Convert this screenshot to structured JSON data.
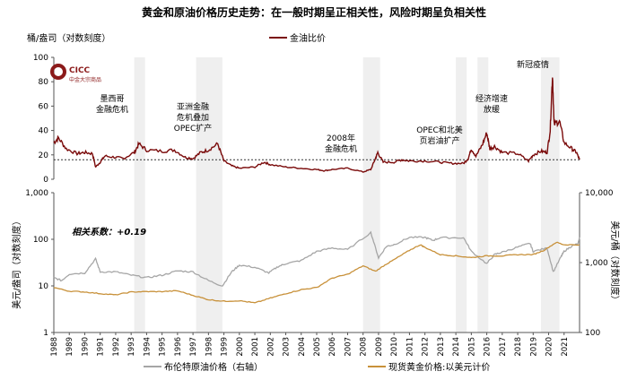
{
  "chart_data": [
    {
      "type": "line",
      "title": "黄金和原油价格历史走势：在一般时期呈正相关性，风险时期呈负相关性",
      "ylabel": "桶/盎司（对数刻度）",
      "ylim": [
        0,
        100
      ],
      "yticks": [
        "0",
        "20",
        "40",
        "60",
        "80",
        "100"
      ],
      "reference_line": 16,
      "legend": "top-center",
      "series": [
        {
          "name": "金油比价",
          "color": "#7a0a0a",
          "x": [
            1988.0,
            1988.3,
            1988.8,
            1989.5,
            1990.0,
            1990.5,
            1990.7,
            1991.0,
            1991.3,
            1992.0,
            1992.5,
            1993.2,
            1993.5,
            1994.0,
            1995.0,
            1995.8,
            1996.5,
            1997.0,
            1997.5,
            1998.0,
            1998.6,
            1999.0,
            1999.5,
            2000.0,
            2001.0,
            2001.6,
            2002.0,
            2003.0,
            2004.0,
            2005.0,
            2005.5,
            2006.0,
            2007.0,
            2008.0,
            2008.5,
            2008.8,
            2008.95,
            2009.3,
            2010.0,
            2010.5,
            2011.0,
            2012.0,
            2013.0,
            2013.8,
            2014.5,
            2014.8,
            2015.0,
            2015.3,
            2015.7,
            2016.0,
            2016.2,
            2016.5,
            2017.0,
            2018.0,
            2018.7,
            2019.0,
            2019.5,
            2019.9,
            2020.1,
            2020.25,
            2020.35,
            2020.7,
            2021.0,
            2021.5,
            2021.8,
            2022.0
          ],
          "values": [
            30,
            34,
            25,
            21,
            22,
            21,
            10,
            14,
            19,
            18,
            17,
            22,
            29,
            24,
            23,
            24,
            18,
            17,
            22,
            24,
            29,
            15,
            11,
            9,
            10,
            14,
            12,
            10,
            9,
            8,
            7,
            8,
            9,
            6,
            8,
            17,
            22,
            14,
            14,
            16,
            15,
            15,
            14,
            13,
            13,
            17,
            25,
            19,
            28,
            38,
            25,
            27,
            22,
            21,
            15,
            20,
            23,
            22,
            40,
            86,
            45,
            48,
            30,
            25,
            22,
            16
          ]
        }
      ],
      "shaded_periods": [
        [
          1993.2,
          1993.9
        ],
        [
          1997.2,
          1998.9
        ],
        [
          2008.0,
          2009.1
        ],
        [
          2014.0,
          2014.7
        ],
        [
          2015.4,
          2016.1
        ],
        [
          2019.5,
          2020.7
        ]
      ],
      "annotations": [
        "墨西哥\n金融危机",
        "亚洲金融\n危机叠加\nOPEC扩产",
        "2008年\n金融危机",
        "OPEC和北美\n页岩油扩产",
        "经济增速\n放缓",
        "新冠疫情"
      ],
      "logo": "CICC 中金大宗商品"
    },
    {
      "type": "line",
      "ylabel": "美元/盎司（对数刻度）",
      "y2label": "美元/桶（对数刻度）",
      "yscale": "log",
      "ylim": [
        1,
        1000
      ],
      "y2lim": [
        100,
        10000
      ],
      "yticks": [
        "1",
        "10",
        "100",
        "1,000"
      ],
      "y2ticks": [
        "100",
        "1,000",
        "10,000"
      ],
      "xticks": [
        "1988",
        "1989",
        "1990",
        "1991",
        "1992",
        "1993",
        "1994",
        "1995",
        "1996",
        "1997",
        "1998",
        "1999",
        "2000",
        "2001",
        "2002",
        "2003",
        "2004",
        "2005",
        "2006",
        "2007",
        "2008",
        "2009",
        "2010",
        "2011",
        "2012",
        "2013",
        "2014",
        "2015",
        "2016",
        "2017",
        "2018",
        "2019",
        "2020",
        "2021"
      ],
      "annotation": "相关系数：+0.19",
      "legend": "bottom",
      "series": [
        {
          "name": "布伦特原油价格（右轴）",
          "color": "#a6a6a6",
          "axis": "left",
          "x": [
            1988,
            1988.5,
            1989,
            1990,
            1990.7,
            1991,
            1992,
            1993,
            1994,
            1995,
            1996,
            1997,
            1998,
            1998.9,
            1999.5,
            2000,
            2001,
            2001.9,
            2002.5,
            2003,
            2004,
            2005,
            2006,
            2007,
            2008.5,
            2009,
            2009.5,
            2010,
            2011,
            2012,
            2012.5,
            2013,
            2014.5,
            2015,
            2016,
            2016.5,
            2017,
            2018,
            2018.8,
            2019,
            2019.9,
            2020.3,
            2020.8,
            2021,
            2021.5,
            2021.9,
            2022
          ],
          "values": [
            15,
            13,
            18,
            19,
            38,
            20,
            20,
            17,
            15,
            17,
            21,
            20,
            13,
            10,
            20,
            28,
            25,
            19,
            26,
            30,
            35,
            55,
            65,
            60,
            140,
            40,
            70,
            77,
            110,
            110,
            95,
            108,
            108,
            55,
            30,
            47,
            53,
            68,
            82,
            55,
            65,
            20,
            42,
            55,
            72,
            80,
            110
          ]
        },
        {
          "name": "现货黄金价格:以美元计价",
          "color": "#c8913a",
          "axis": "right",
          "x": [
            1988,
            1989,
            1990,
            1991,
            1992,
            1993,
            1994,
            1995,
            1996,
            1997,
            1998,
            1999,
            2000,
            2001,
            2002,
            2003,
            2004,
            2005,
            2006,
            2007,
            2008,
            2008.8,
            2009.5,
            2010,
            2011,
            2011.7,
            2012,
            2013,
            2014,
            2015,
            2016,
            2017,
            2018,
            2019,
            2019.7,
            2020.5,
            2021,
            2022
          ],
          "values": [
            440,
            390,
            380,
            360,
            345,
            380,
            385,
            385,
            395,
            340,
            295,
            280,
            285,
            265,
            310,
            360,
            410,
            440,
            600,
            680,
            900,
            750,
            950,
            1100,
            1500,
            1800,
            1650,
            1300,
            1250,
            1180,
            1250,
            1250,
            1300,
            1300,
            1500,
            1950,
            1800,
            1800
          ]
        }
      ]
    }
  ]
}
